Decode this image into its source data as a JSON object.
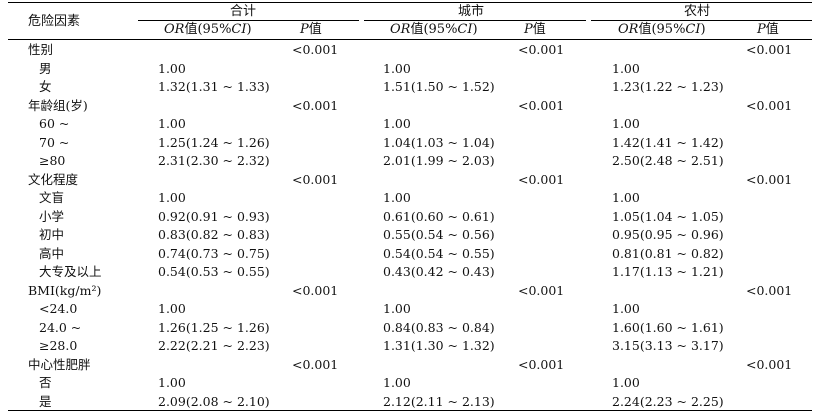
{
  "table": {
    "header": {
      "factor": "危险因素",
      "groups": [
        "合计",
        "城市",
        "农村"
      ],
      "or_label_italic": "OR",
      "or_label_rest": "值(95%",
      "ci_italic": "CI",
      "ci_close": ")",
      "p_italic": "P",
      "p_rest": "值"
    },
    "rows": [
      {
        "label": "性别",
        "group": true,
        "p": [
          "<0.001",
          "<0.001",
          "<0.001"
        ]
      },
      {
        "label": "男",
        "or": [
          "1.00",
          "1.00",
          "1.00"
        ]
      },
      {
        "label": "女",
        "or": [
          "1.32(1.31 ~ 1.33)",
          "1.51(1.50 ~ 1.52)",
          "1.23(1.22 ~ 1.23)"
        ]
      },
      {
        "label": "年龄组(岁)",
        "group": true,
        "p": [
          "<0.001",
          "<0.001",
          "<0.001"
        ]
      },
      {
        "label": "60 ~",
        "or": [
          "1.00",
          "1.00",
          "1.00"
        ]
      },
      {
        "label": "70 ~",
        "or": [
          "1.25(1.24 ~ 1.26)",
          "1.04(1.03 ~ 1.04)",
          "1.42(1.41 ~ 1.42)"
        ]
      },
      {
        "label": "≥80",
        "or": [
          "2.31(2.30 ~ 2.32)",
          "2.01(1.99 ~ 2.03)",
          "2.50(2.48 ~ 2.51)"
        ]
      },
      {
        "label": "文化程度",
        "group": true,
        "p": [
          "<0.001",
          "<0.001",
          "<0.001"
        ]
      },
      {
        "label": "文盲",
        "or": [
          "1.00",
          "1.00",
          "1.00"
        ]
      },
      {
        "label": "小学",
        "or": [
          "0.92(0.91 ~ 0.93)",
          "0.61(0.60 ~ 0.61)",
          "1.05(1.04 ~ 1.05)"
        ]
      },
      {
        "label": "初中",
        "or": [
          "0.83(0.82 ~ 0.83)",
          "0.55(0.54 ~ 0.56)",
          "0.95(0.95 ~ 0.96)"
        ]
      },
      {
        "label": "高中",
        "or": [
          "0.74(0.73 ~ 0.75)",
          "0.54(0.54 ~ 0.55)",
          "0.81(0.81 ~ 0.82)"
        ]
      },
      {
        "label": "大专及以上",
        "or": [
          "0.54(0.53 ~ 0.55)",
          "0.43(0.42 ~ 0.43)",
          "1.17(1.13 ~ 1.21)"
        ]
      },
      {
        "label": "BMI(kg/m²)",
        "group": true,
        "p": [
          "<0.001",
          "<0.001",
          "<0.001"
        ]
      },
      {
        "label": "<24.0",
        "or": [
          "1.00",
          "1.00",
          "1.00"
        ]
      },
      {
        "label": "24.0 ~",
        "or": [
          "1.26(1.25 ~ 1.26)",
          "0.84(0.83 ~ 0.84)",
          "1.60(1.60 ~ 1.61)"
        ]
      },
      {
        "label": "≥28.0",
        "or": [
          "2.22(2.21 ~ 2.23)",
          "1.31(1.30 ~ 1.32)",
          "3.15(3.13 ~ 3.17)"
        ]
      },
      {
        "label": "中心性肥胖",
        "group": true,
        "p": [
          "<0.001",
          "<0.001",
          "<0.001"
        ]
      },
      {
        "label": "否",
        "or": [
          "1.00",
          "1.00",
          "1.00"
        ]
      },
      {
        "label": "是",
        "or": [
          "2.09(2.08 ~ 2.10)",
          "2.12(2.11 ~ 2.13)",
          "2.24(2.23 ~ 2.25)"
        ]
      }
    ]
  }
}
